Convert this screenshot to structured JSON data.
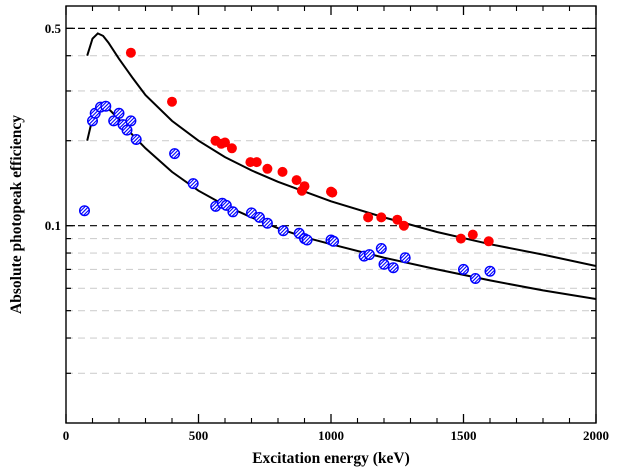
{
  "chart_data": {
    "type": "scatter",
    "xlabel": "Excitation energy (keV)",
    "ylabel": "Absolute photopeak efficiency",
    "xlim": [
      0,
      2000
    ],
    "ylim": [
      0.02,
      0.6
    ],
    "y_scale": "log",
    "x_ticks": [
      0,
      500,
      1000,
      1500,
      2000
    ],
    "y_tick_labels": [
      {
        "value": 0.1,
        "label": "0.1"
      },
      {
        "value": 0.5,
        "label": "0.5"
      }
    ],
    "y_gridlines_dashed": [
      0.1,
      0.5
    ],
    "y_gridlines_light": [
      0.03,
      0.04,
      0.05,
      0.06,
      0.07,
      0.08,
      0.09,
      0.2,
      0.3,
      0.4
    ],
    "series": [
      {
        "kind": "points",
        "marker": "filled-circle",
        "color": "#ff0000",
        "points": [
          [
            245,
            0.41
          ],
          [
            400,
            0.275
          ],
          [
            564,
            0.2
          ],
          [
            586,
            0.195
          ],
          [
            600,
            0.197
          ],
          [
            626,
            0.188
          ],
          [
            696,
            0.168
          ],
          [
            720,
            0.168
          ],
          [
            760,
            0.159
          ],
          [
            817,
            0.155
          ],
          [
            870,
            0.145
          ],
          [
            890,
            0.133
          ],
          [
            900,
            0.138
          ],
          [
            1000,
            0.132
          ],
          [
            1005,
            0.131
          ],
          [
            1140,
            0.107
          ],
          [
            1190,
            0.107
          ],
          [
            1250,
            0.105
          ],
          [
            1275,
            0.1
          ],
          [
            1490,
            0.09
          ],
          [
            1535,
            0.093
          ],
          [
            1595,
            0.088
          ]
        ]
      },
      {
        "kind": "points",
        "marker": "hatched-circle",
        "color": "#0000ff",
        "points": [
          [
            70,
            0.113
          ],
          [
            100,
            0.235
          ],
          [
            110,
            0.25
          ],
          [
            130,
            0.263
          ],
          [
            150,
            0.265
          ],
          [
            180,
            0.235
          ],
          [
            200,
            0.25
          ],
          [
            215,
            0.228
          ],
          [
            230,
            0.218
          ],
          [
            245,
            0.235
          ],
          [
            265,
            0.202
          ],
          [
            410,
            0.18
          ],
          [
            480,
            0.141
          ],
          [
            565,
            0.117
          ],
          [
            590,
            0.12
          ],
          [
            605,
            0.118
          ],
          [
            630,
            0.112
          ],
          [
            700,
            0.111
          ],
          [
            730,
            0.107
          ],
          [
            760,
            0.102
          ],
          [
            820,
            0.096
          ],
          [
            880,
            0.094
          ],
          [
            900,
            0.09
          ],
          [
            910,
            0.089
          ],
          [
            1000,
            0.089
          ],
          [
            1010,
            0.088
          ],
          [
            1125,
            0.078
          ],
          [
            1145,
            0.079
          ],
          [
            1190,
            0.083
          ],
          [
            1200,
            0.073
          ],
          [
            1235,
            0.071
          ],
          [
            1280,
            0.077
          ],
          [
            1500,
            0.07
          ],
          [
            1545,
            0.065
          ],
          [
            1600,
            0.069
          ]
        ]
      },
      {
        "kind": "line",
        "color": "#000000",
        "points": [
          [
            80,
            0.4
          ],
          [
            100,
            0.46
          ],
          [
            120,
            0.48
          ],
          [
            140,
            0.47
          ],
          [
            160,
            0.445
          ],
          [
            200,
            0.39
          ],
          [
            250,
            0.335
          ],
          [
            300,
            0.29
          ],
          [
            400,
            0.235
          ],
          [
            500,
            0.2
          ],
          [
            600,
            0.175
          ],
          [
            700,
            0.157
          ],
          [
            800,
            0.143
          ],
          [
            900,
            0.132
          ],
          [
            1000,
            0.122
          ],
          [
            1200,
            0.107
          ],
          [
            1400,
            0.095
          ],
          [
            1600,
            0.086
          ],
          [
            1800,
            0.079
          ],
          [
            2000,
            0.072
          ]
        ]
      },
      {
        "kind": "line",
        "color": "#000000",
        "points": [
          [
            80,
            0.2
          ],
          [
            100,
            0.24
          ],
          [
            120,
            0.262
          ],
          [
            140,
            0.268
          ],
          [
            160,
            0.26
          ],
          [
            200,
            0.238
          ],
          [
            250,
            0.21
          ],
          [
            300,
            0.188
          ],
          [
            400,
            0.155
          ],
          [
            500,
            0.133
          ],
          [
            600,
            0.118
          ],
          [
            700,
            0.107
          ],
          [
            800,
            0.098
          ],
          [
            900,
            0.091
          ],
          [
            1000,
            0.086
          ],
          [
            1200,
            0.077
          ],
          [
            1400,
            0.07
          ],
          [
            1600,
            0.064
          ],
          [
            1800,
            0.059
          ],
          [
            2000,
            0.055
          ]
        ]
      }
    ]
  }
}
